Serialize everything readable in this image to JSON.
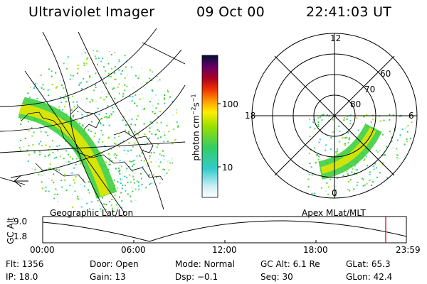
{
  "header": {
    "instrument": "Ultraviolet Imager",
    "date": "09 Oct 00",
    "time": "22:41:03 UT"
  },
  "colorbar": {
    "label": "photon cm-2s-1",
    "label_main": "photon cm",
    "label_exp1": "−2",
    "label_s": "s",
    "label_exp2": "−1",
    "ticks": [
      "100",
      "10"
    ]
  },
  "polar_plot": {
    "mlt_labels": [
      "12",
      "18",
      "6",
      "0"
    ],
    "lat_labels": [
      "60",
      "70",
      "80"
    ]
  },
  "map_labels": {
    "left": "Geographic Lat/Lon",
    "right": "Apex MLat/MLT"
  },
  "altitude_chart": {
    "ylabel": "GC Alt",
    "yticks": [
      "9.0",
      "1.8"
    ],
    "xticks": [
      "00:00",
      "06:00",
      "12:00",
      "18:00",
      "23:59"
    ]
  },
  "status": {
    "flt": "Flt: 1356",
    "ip": "IP: 18.0",
    "door": "Door: Open",
    "gain": "Gain: 13",
    "mode": "Mode: Normal",
    "dsp": "Dsp:   −0.1",
    "gc_alt": "GC Alt: 6.1 Re",
    "seq": "Seq: 30",
    "glat": "GLat:  65.3",
    "glon": "GLon:  42.4"
  },
  "colors": {
    "marker": "#cc0000",
    "aurora_bright": "#e6e600",
    "aurora_mid": "#33cc33",
    "aurora_low": "#33cccc"
  }
}
